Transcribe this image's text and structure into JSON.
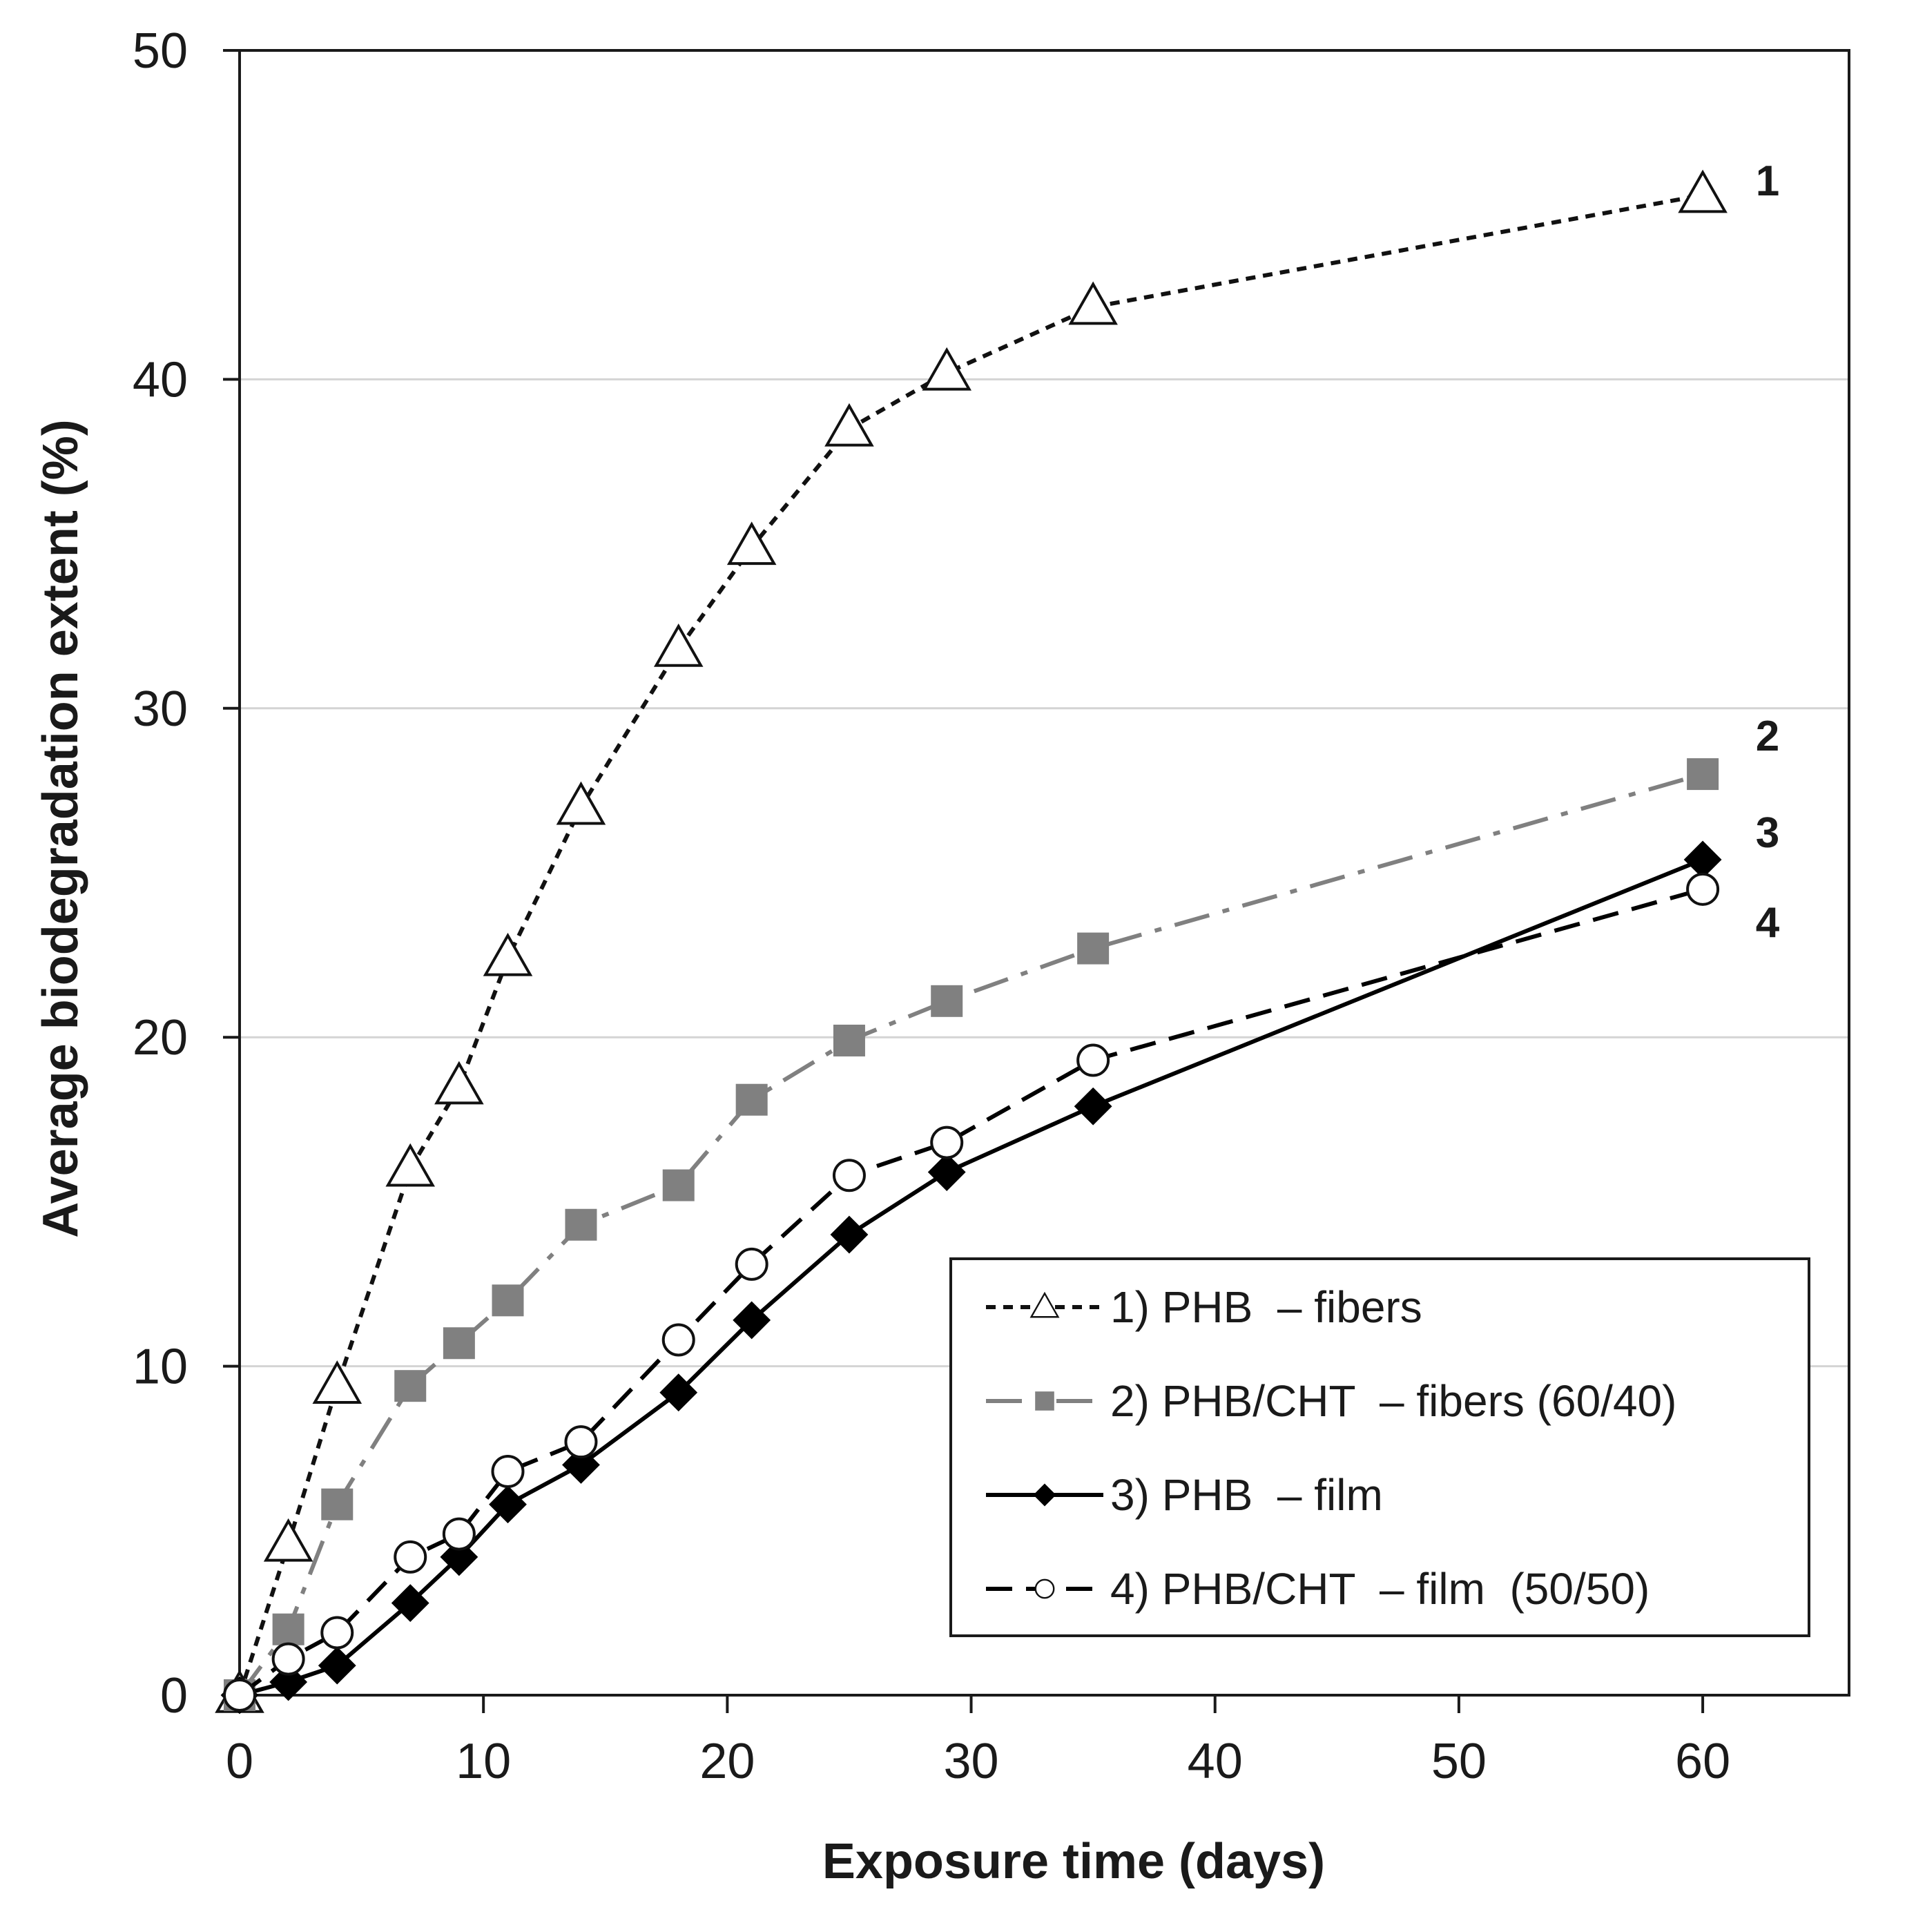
{
  "chart_data": {
    "type": "line",
    "title": "",
    "xlabel": "Exposure time (days)",
    "ylabel": "Average biodegradation extent (%)",
    "xlim": [
      0,
      66
    ],
    "ylim": [
      0,
      50
    ],
    "xticks": [
      0,
      10,
      20,
      30,
      40,
      50,
      60
    ],
    "yticks": [
      0,
      10,
      20,
      30,
      40,
      50
    ],
    "grid": "horizontal",
    "legend_position": "bottom-right",
    "series": [
      {
        "name": "1) PHB  – fibers",
        "end_label": "1",
        "marker": "triangle-open",
        "line_style": "short-dash",
        "color": "#111111",
        "x": [
          0,
          2,
          4,
          7,
          9,
          11,
          14,
          18,
          21,
          25,
          29,
          35,
          60
        ],
        "y": [
          0,
          4.6,
          9.4,
          16.0,
          18.5,
          22.4,
          27.0,
          31.8,
          34.9,
          38.5,
          40.2,
          42.2,
          45.6
        ]
      },
      {
        "name": "2) PHB/CHT  – fibers (60/40)",
        "end_label": "2",
        "marker": "square-filled",
        "line_style": "dash-dot",
        "color": "#808080",
        "x": [
          0,
          2,
          4,
          7,
          9,
          11,
          14,
          18,
          21,
          25,
          29,
          35,
          60
        ],
        "y": [
          0,
          2.0,
          5.8,
          9.4,
          10.7,
          12.0,
          14.3,
          15.5,
          18.1,
          19.9,
          21.1,
          22.7,
          28.0
        ]
      },
      {
        "name": "3) PHB  – film",
        "end_label": "3",
        "marker": "diamond-filled",
        "line_style": "solid",
        "color": "#000000",
        "x": [
          0,
          2,
          4,
          7,
          9,
          11,
          14,
          18,
          21,
          25,
          29,
          35,
          60
        ],
        "y": [
          0,
          0.4,
          0.9,
          2.8,
          4.2,
          5.8,
          7.0,
          9.2,
          11.4,
          14.0,
          15.9,
          17.9,
          25.4
        ]
      },
      {
        "name": "4) PHB/CHT  – film  (50/50)",
        "end_label": "4",
        "marker": "circle-open",
        "line_style": "long-dash",
        "color": "#000000",
        "x": [
          0,
          2,
          4,
          7,
          9,
          11,
          14,
          18,
          21,
          25,
          29,
          35,
          60
        ],
        "y": [
          0,
          1.1,
          1.9,
          4.2,
          4.9,
          6.8,
          7.7,
          10.8,
          13.1,
          15.8,
          16.8,
          19.3,
          24.5
        ]
      }
    ]
  }
}
